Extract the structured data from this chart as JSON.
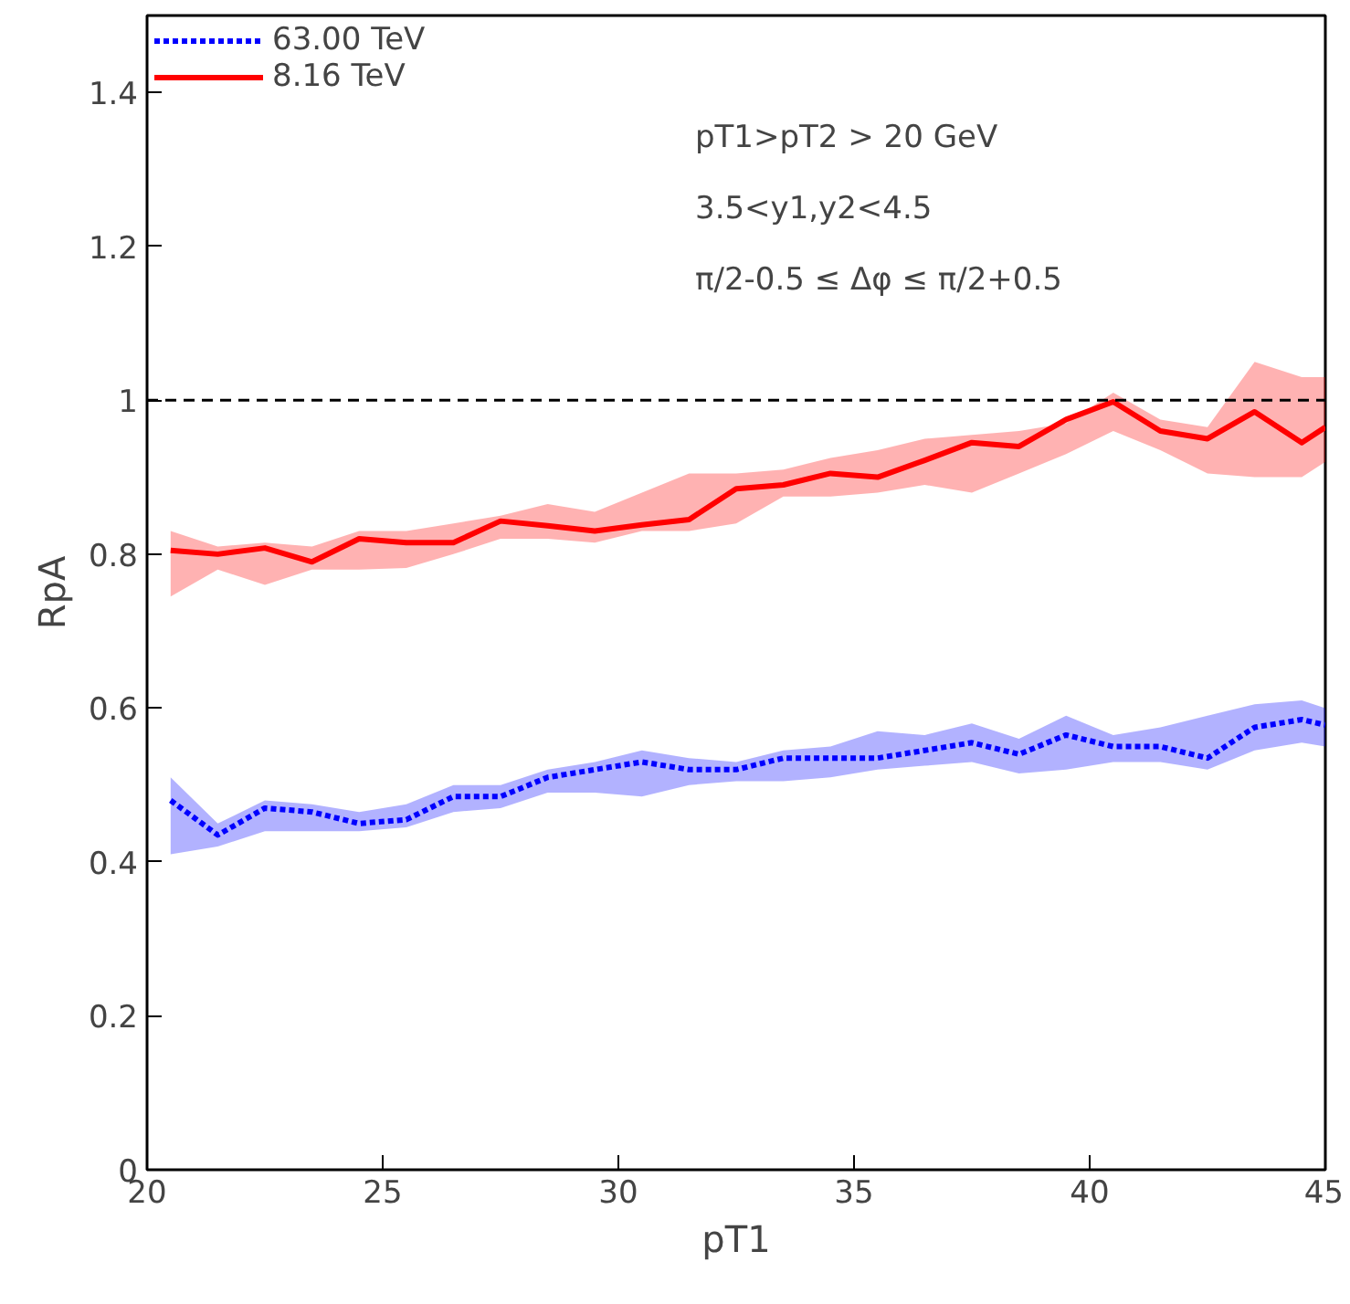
{
  "chart_data": {
    "type": "line",
    "xlabel": "pT1",
    "ylabel": "RpA",
    "x": [
      20.5,
      21.5,
      22.5,
      23.5,
      24.5,
      25.5,
      26.5,
      27.5,
      28.5,
      29.5,
      30.5,
      31.5,
      32.5,
      33.5,
      34.5,
      35.5,
      36.5,
      37.5,
      38.5,
      39.5,
      40.5,
      41.5,
      42.5,
      43.5,
      44.5,
      45
    ],
    "series": [
      {
        "name": "63.00 TeV",
        "color": "#0000ff",
        "line_style": "dotted",
        "values": [
          0.48,
          0.435,
          0.47,
          0.465,
          0.45,
          0.455,
          0.485,
          0.485,
          0.51,
          0.52,
          0.53,
          0.52,
          0.52,
          0.535,
          0.535,
          0.535,
          0.545,
          0.555,
          0.54,
          0.565,
          0.55,
          0.55,
          0.535,
          0.575,
          0.585,
          0.578
        ],
        "lower": [
          0.41,
          0.42,
          0.44,
          0.44,
          0.44,
          0.445,
          0.465,
          0.47,
          0.49,
          0.49,
          0.485,
          0.5,
          0.505,
          0.505,
          0.51,
          0.52,
          0.525,
          0.53,
          0.515,
          0.52,
          0.53,
          0.53,
          0.52,
          0.545,
          0.555,
          0.55
        ],
        "upper": [
          0.51,
          0.45,
          0.48,
          0.475,
          0.465,
          0.475,
          0.5,
          0.5,
          0.52,
          0.53,
          0.545,
          0.535,
          0.53,
          0.545,
          0.55,
          0.57,
          0.565,
          0.58,
          0.56,
          0.59,
          0.565,
          0.575,
          0.59,
          0.605,
          0.61,
          0.6
        ]
      },
      {
        "name": "8.16 TeV",
        "color": "#ff0000",
        "line_style": "solid",
        "values": [
          0.805,
          0.8,
          0.808,
          0.79,
          0.82,
          0.815,
          0.815,
          0.843,
          0.837,
          0.83,
          0.838,
          0.845,
          0.885,
          0.89,
          0.905,
          0.9,
          0.922,
          0.945,
          0.94,
          0.975,
          0.998,
          0.96,
          0.95,
          0.985,
          0.945,
          0.965
        ],
        "lower": [
          0.745,
          0.78,
          0.76,
          0.78,
          0.78,
          0.782,
          0.8,
          0.82,
          0.82,
          0.815,
          0.83,
          0.83,
          0.84,
          0.875,
          0.875,
          0.88,
          0.89,
          0.88,
          0.905,
          0.93,
          0.96,
          0.935,
          0.905,
          0.9,
          0.9,
          0.92
        ],
        "upper": [
          0.83,
          0.81,
          0.815,
          0.81,
          0.83,
          0.83,
          0.84,
          0.85,
          0.865,
          0.855,
          0.88,
          0.905,
          0.905,
          0.91,
          0.925,
          0.935,
          0.95,
          0.955,
          0.96,
          0.97,
          1.01,
          0.975,
          0.965,
          1.05,
          1.03,
          1.03
        ]
      }
    ],
    "xlim": [
      20,
      45
    ],
    "xticks": [
      20,
      25,
      30,
      35,
      40,
      45
    ],
    "ylim": [
      0,
      1.5
    ],
    "yticks": [
      0,
      0.2,
      0.4,
      0.6,
      0.8,
      1,
      1.2,
      1.4
    ],
    "ref_lines": [
      {
        "axis": "y",
        "value": 1,
        "color": "#000000",
        "line_style": "dashed"
      }
    ],
    "annotations": [
      "pT1>pT2 > 20 GeV",
      "3.5<y1,y2<4.5",
      "π/2-0.5 ≤ Δφ ≤ π/2+0.5"
    ],
    "legend": "top left",
    "grid": false,
    "marker": "none"
  }
}
